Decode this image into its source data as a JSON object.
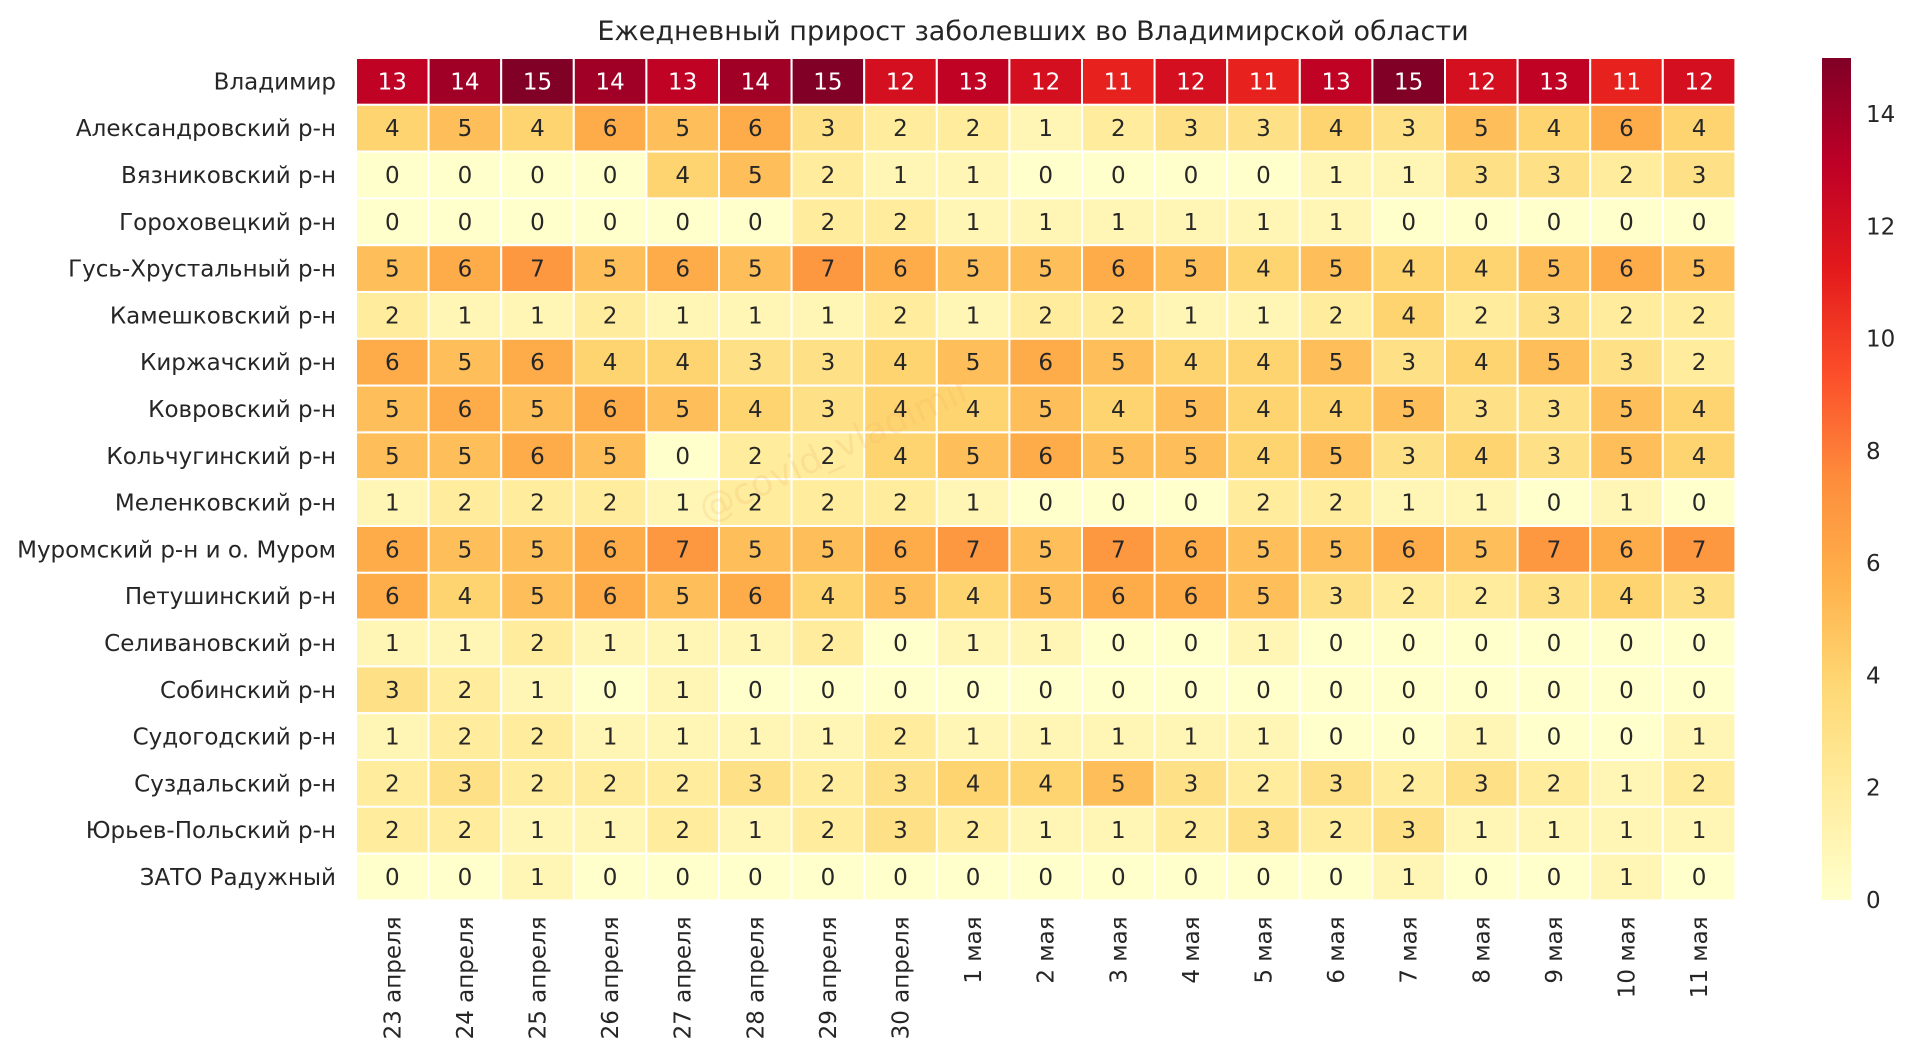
{
  "chart_data": {
    "type": "heatmap",
    "title": "Ежедневный прирост заболевших во Владимирской области",
    "rows": [
      "Владимир",
      "Александровский р-н",
      "Вязниковский р-н",
      "Гороховецкий р-н",
      "Гусь-Хрустальный р-н",
      "Камешковский р-н",
      "Киржачский р-н",
      "Ковровский р-н",
      "Кольчугинский р-н",
      "Меленковский р-н",
      "Муромский р-н и о. Муром",
      "Петушинский р-н",
      "Селивановский р-н",
      "Собинский р-н",
      "Судогодский р-н",
      "Суздальский р-н",
      "Юрьев-Польский р-н",
      "ЗАТО Радужный"
    ],
    "columns": [
      "23 апреля",
      "24 апреля",
      "25 апреля",
      "26 апреля",
      "27 апреля",
      "28 апреля",
      "29 апреля",
      "30 апреля",
      "1 мая",
      "2 мая",
      "3 мая",
      "4 мая",
      "5 мая",
      "6 мая",
      "7 мая",
      "8 мая",
      "9 мая",
      "10 мая",
      "11 мая"
    ],
    "values": [
      [
        13,
        14,
        15,
        14,
        13,
        14,
        15,
        12,
        13,
        12,
        11,
        12,
        11,
        13,
        15,
        12,
        13,
        11,
        12
      ],
      [
        4,
        5,
        4,
        6,
        5,
        6,
        3,
        2,
        2,
        1,
        2,
        3,
        3,
        4,
        3,
        5,
        4,
        6,
        4
      ],
      [
        0,
        0,
        0,
        0,
        4,
        5,
        2,
        1,
        1,
        0,
        0,
        0,
        0,
        1,
        1,
        3,
        3,
        2,
        3
      ],
      [
        0,
        0,
        0,
        0,
        0,
        0,
        2,
        2,
        1,
        1,
        1,
        1,
        1,
        1,
        0,
        0,
        0,
        0,
        0
      ],
      [
        5,
        6,
        7,
        5,
        6,
        5,
        7,
        6,
        5,
        5,
        6,
        5,
        4,
        5,
        4,
        4,
        5,
        6,
        5
      ],
      [
        2,
        1,
        1,
        2,
        1,
        1,
        1,
        2,
        1,
        2,
        2,
        1,
        1,
        2,
        4,
        2,
        3,
        2,
        2
      ],
      [
        6,
        5,
        6,
        4,
        4,
        3,
        3,
        4,
        5,
        6,
        5,
        4,
        4,
        5,
        3,
        4,
        5,
        3,
        2
      ],
      [
        5,
        6,
        5,
        6,
        5,
        4,
        3,
        4,
        4,
        5,
        4,
        5,
        4,
        4,
        5,
        3,
        3,
        5,
        4
      ],
      [
        5,
        5,
        6,
        5,
        0,
        2,
        2,
        4,
        5,
        6,
        5,
        5,
        4,
        5,
        3,
        4,
        3,
        5,
        4
      ],
      [
        1,
        2,
        2,
        2,
        1,
        2,
        2,
        2,
        1,
        0,
        0,
        0,
        2,
        2,
        1,
        1,
        0,
        1,
        0
      ],
      [
        6,
        5,
        5,
        6,
        7,
        5,
        5,
        6,
        7,
        5,
        7,
        6,
        5,
        5,
        6,
        5,
        7,
        6,
        7
      ],
      [
        6,
        4,
        5,
        6,
        5,
        6,
        4,
        5,
        4,
        5,
        6,
        6,
        5,
        3,
        2,
        2,
        3,
        4,
        3
      ],
      [
        1,
        1,
        2,
        1,
        1,
        1,
        2,
        0,
        1,
        1,
        0,
        0,
        1,
        0,
        0,
        0,
        0,
        0,
        0
      ],
      [
        3,
        2,
        1,
        0,
        1,
        0,
        0,
        0,
        0,
        0,
        0,
        0,
        0,
        0,
        0,
        0,
        0,
        0,
        0
      ],
      [
        1,
        2,
        2,
        1,
        1,
        1,
        1,
        2,
        1,
        1,
        1,
        1,
        1,
        0,
        0,
        1,
        0,
        0,
        1
      ],
      [
        2,
        3,
        2,
        2,
        2,
        3,
        2,
        3,
        4,
        4,
        5,
        3,
        2,
        3,
        2,
        3,
        2,
        1,
        2
      ],
      [
        2,
        2,
        1,
        1,
        2,
        1,
        2,
        3,
        2,
        1,
        1,
        2,
        3,
        2,
        3,
        1,
        1,
        1,
        1
      ],
      [
        0,
        0,
        1,
        0,
        0,
        0,
        0,
        0,
        0,
        0,
        0,
        0,
        0,
        0,
        1,
        0,
        0,
        1,
        0
      ]
    ],
    "colormap": "YlOrRd",
    "vmin": 0,
    "vmax": 15,
    "colorbar_ticks": [
      0,
      2,
      4,
      6,
      8,
      10,
      12,
      14
    ],
    "annotated": true,
    "watermark": "@covid_vladimir"
  }
}
